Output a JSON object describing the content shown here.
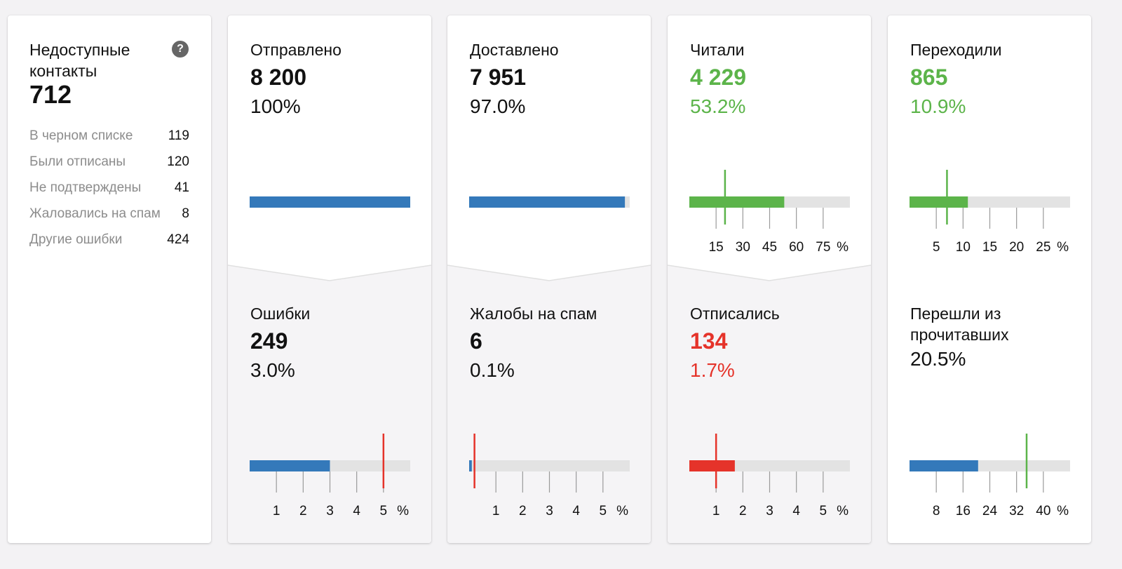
{
  "unavailable": {
    "title": "Недоступные контакты",
    "value": "712",
    "help_icon": "question-circle-icon",
    "rows": [
      {
        "label": "В черном списке",
        "value": "119"
      },
      {
        "label": "Были отписаны",
        "value": "120"
      },
      {
        "label": "Не подтверждены",
        "value": "41"
      },
      {
        "label": "Жаловались на спам",
        "value": "8"
      },
      {
        "label": "Другие ошибки",
        "value": "424"
      }
    ]
  },
  "colors": {
    "blue": "#3479ba",
    "green": "#5cb44a",
    "red": "#e5332a",
    "track": "#e3e3e3",
    "tick": "#9a9a9a"
  },
  "cards": [
    {
      "top": {
        "title": "Отправлено",
        "value": "8 200",
        "percent": "100%",
        "tone": "default"
      },
      "bottom": {
        "title": "Ошибки",
        "value": "249",
        "percent": "3.0%",
        "tone": "default"
      }
    },
    {
      "top": {
        "title": "Доставлено",
        "value": "7 951",
        "percent": "97.0%",
        "tone": "default"
      },
      "bottom": {
        "title": "Жалобы на спам",
        "value": "6",
        "percent": "0.1%",
        "tone": "default"
      }
    },
    {
      "top": {
        "title": "Читали",
        "value": "4 229",
        "percent": "53.2%",
        "tone": "green"
      },
      "bottom": {
        "title": "Отписались",
        "value": "134",
        "percent": "1.7%",
        "tone": "red"
      }
    },
    {
      "top": {
        "title": "Переходили",
        "value": "865",
        "percent": "10.9%",
        "tone": "green"
      },
      "bottom": {
        "title": "Перешли из прочитавших",
        "value": "",
        "percent": "20.5%",
        "tone": "default"
      }
    }
  ],
  "chart_data": [
    {
      "type": "bar",
      "id": "sent",
      "title": "Отправлено",
      "value": 100,
      "max": 100,
      "bar_color": "blue",
      "ticks": [],
      "unit": "",
      "marker": null
    },
    {
      "type": "bar",
      "id": "delivered",
      "title": "Доставлено",
      "value": 97.0,
      "max": 100,
      "bar_color": "blue",
      "ticks": [],
      "unit": "",
      "marker": null
    },
    {
      "type": "bar",
      "id": "read",
      "title": "Читали",
      "value": 53.2,
      "max": 90,
      "bar_color": "green",
      "ticks": [
        15,
        30,
        45,
        60,
        75
      ],
      "unit": "%",
      "marker": {
        "value": 20,
        "color": "green"
      }
    },
    {
      "type": "bar",
      "id": "clicked",
      "title": "Переходили",
      "value": 10.9,
      "max": 30,
      "bar_color": "green",
      "ticks": [
        5,
        10,
        15,
        20,
        25
      ],
      "unit": "%",
      "marker": {
        "value": 7,
        "color": "green"
      }
    },
    {
      "type": "bar",
      "id": "errors",
      "title": "Ошибки",
      "value": 3.0,
      "max": 6,
      "bar_color": "blue",
      "ticks": [
        1,
        2,
        3,
        4,
        5
      ],
      "unit": "%",
      "marker": {
        "value": 5,
        "color": "red"
      }
    },
    {
      "type": "bar",
      "id": "spam",
      "title": "Жалобы на спам",
      "value": 0.1,
      "max": 6,
      "bar_color": "blue",
      "ticks": [
        1,
        2,
        3,
        4,
        5
      ],
      "unit": "%",
      "marker": {
        "value": 0.2,
        "color": "red"
      }
    },
    {
      "type": "bar",
      "id": "unsub",
      "title": "Отписались",
      "value": 1.7,
      "max": 6,
      "bar_color": "red",
      "ticks": [
        1,
        2,
        3,
        4,
        5
      ],
      "unit": "%",
      "marker": {
        "value": 1,
        "color": "red"
      }
    },
    {
      "type": "bar",
      "id": "clicked-of-read",
      "title": "Перешли из прочитавших",
      "value": 20.5,
      "max": 48,
      "bar_color": "blue",
      "ticks": [
        8,
        16,
        24,
        32,
        40
      ],
      "unit": "%",
      "marker": {
        "value": 35,
        "color": "green"
      }
    }
  ]
}
